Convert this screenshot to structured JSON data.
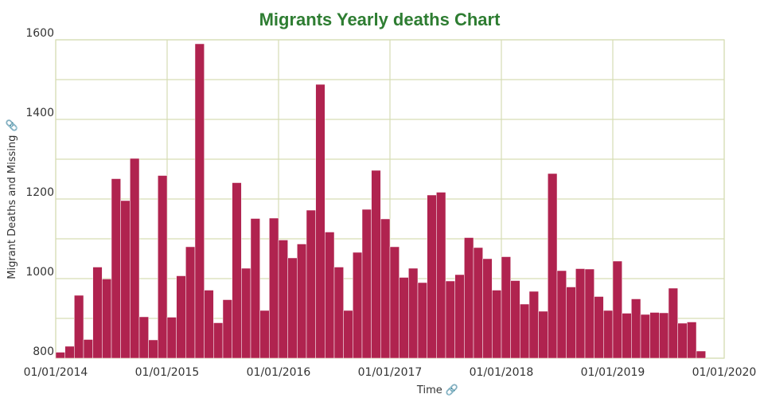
{
  "chart_data": {
    "type": "bar",
    "title": "Migrants Yearly deaths Chart",
    "xlabel": "Time 🔗",
    "ylabel": "Migrant Deaths and Missing 🔗",
    "ylim": [
      800,
      1600
    ],
    "yticks": [
      800,
      1000,
      1200,
      1400,
      1600
    ],
    "xlim": [
      "2014-01-01",
      "2020-01-01"
    ],
    "xticks": [
      "01/01/2014",
      "01/01/2015",
      "01/01/2016",
      "01/01/2017",
      "01/01/2018",
      "01/01/2019",
      "01/01/2020"
    ],
    "grid": true,
    "bar_color": "#b0234f",
    "grid_color": "#d6ddb4",
    "title_color": "#2e7d32",
    "series": [
      {
        "x": [
          "2014-01",
          "2014-02",
          "2014-03",
          "2014-04",
          "2014-05",
          "2014-06",
          "2014-07",
          "2014-08",
          "2014-09",
          "2014-10",
          "2014-11",
          "2014-12",
          "2015-01",
          "2015-02",
          "2015-03",
          "2015-04",
          "2015-05",
          "2015-06",
          "2015-07",
          "2015-08",
          "2015-09",
          "2015-10",
          "2015-11",
          "2015-12",
          "2016-01",
          "2016-02",
          "2016-03",
          "2016-04",
          "2016-05",
          "2016-06",
          "2016-07",
          "2016-08",
          "2016-09",
          "2016-10",
          "2016-11",
          "2016-12",
          "2017-01",
          "2017-02",
          "2017-03",
          "2017-04",
          "2017-05",
          "2017-06",
          "2017-07",
          "2017-08",
          "2017-09",
          "2017-10",
          "2017-11",
          "2017-12",
          "2018-01",
          "2018-02",
          "2018-03",
          "2018-04",
          "2018-05",
          "2018-06",
          "2018-07",
          "2018-08",
          "2018-09",
          "2018-10",
          "2018-11",
          "2018-12",
          "2019-01",
          "2019-02",
          "2019-03",
          "2019-04",
          "2019-05",
          "2019-06",
          "2019-07",
          "2019-08",
          "2019-09",
          "2019-10",
          "2019-11",
          "2019-12"
        ],
        "values": [
          815,
          830,
          958,
          847,
          1029,
          999,
          1251,
          1196,
          1302,
          904,
          846,
          1259,
          903,
          1007,
          1080,
          1590,
          971,
          889,
          947,
          1241,
          1026,
          1151,
          920,
          1152,
          1097,
          1052,
          1087,
          1172,
          1488,
          1117,
          1029,
          920,
          1066,
          1174,
          1272,
          1150,
          1080,
          1003,
          1026,
          990,
          1210,
          1217,
          994,
          1010,
          1103,
          1078,
          1050,
          971,
          1055,
          995,
          936,
          968,
          918,
          1264,
          1020,
          979,
          1025,
          1024,
          955,
          920,
          1044,
          913,
          949,
          910,
          915,
          914,
          976,
          888,
          891,
          818,
          null,
          null
        ]
      }
    ]
  }
}
